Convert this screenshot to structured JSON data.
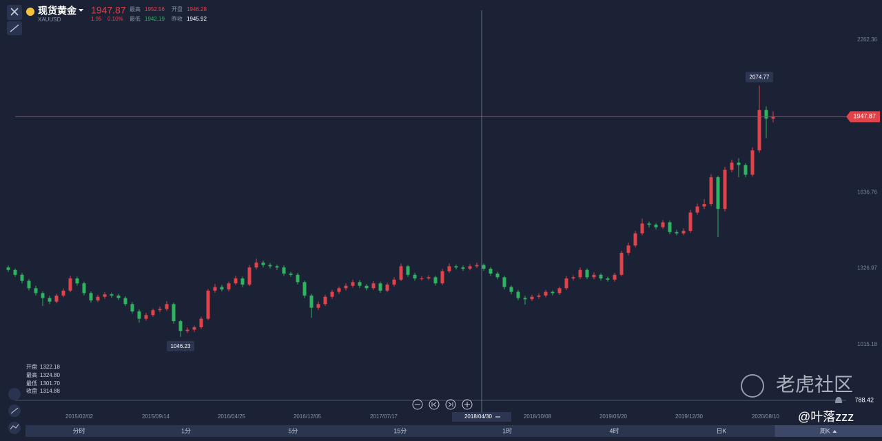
{
  "header": {
    "name": "现货黄金",
    "symbol": "XAUUSD",
    "price": "1947.87",
    "change": "1.95",
    "change_pct": "0.10%",
    "high_label": "最高",
    "high": "1952.56",
    "open_label": "开盘",
    "open": "1946.28",
    "low_label": "最低",
    "low": "1942.19",
    "prev_label": "昨收",
    "prev_close": "1945.92"
  },
  "chart_data": {
    "type": "candlestick",
    "up_color": "#e0434a",
    "down_color": "#2eb35e",
    "xlim": [
      -0.5,
      111.5
    ],
    "xticks": [
      {
        "value": 10.3,
        "label": "2015/02/02"
      },
      {
        "value": 21.4,
        "label": "2015/09/14"
      },
      {
        "value": 32.4,
        "label": "2016/04/25"
      },
      {
        "value": 43.4,
        "label": "2016/12/05"
      },
      {
        "value": 54.5,
        "label": "2017/07/17"
      },
      {
        "value": 76.8,
        "label": "2018/10/08"
      },
      {
        "value": 87.8,
        "label": "2019/05/20"
      },
      {
        "value": 98.8,
        "label": "2019/12/30"
      },
      {
        "value": 109.9,
        "label": "2020/08/10"
      }
    ],
    "ylim": [
      788.42,
      2426
    ],
    "yticks": [
      1015.18,
      1326.97,
      1636.76,
      2262.36
    ],
    "open": [
      1330,
      1320,
      1300,
      1275,
      1245,
      1225,
      1205,
      1190,
      1215,
      1235,
      1285,
      1265,
      1225,
      1195,
      1210,
      1220,
      1215,
      1205,
      1180,
      1150,
      1120,
      1135,
      1155,
      1160,
      1180,
      1110,
      1070,
      1075,
      1085,
      1120,
      1235,
      1250,
      1240,
      1265,
      1285,
      1260,
      1330,
      1350,
      1340,
      1335,
      1330,
      1305,
      1300,
      1270,
      1215,
      1165,
      1180,
      1210,
      1230,
      1245,
      1255,
      1270,
      1255,
      1245,
      1265,
      1235,
      1260,
      1280,
      1335,
      1300,
      1285,
      1285,
      1290,
      1265,
      1315,
      1335,
      1330,
      1325,
      1335,
      1340,
      1325,
      1305,
      1290,
      1250,
      1230,
      1205,
      1200,
      1210,
      1215,
      1230,
      1225,
      1245,
      1285,
      1290,
      1320,
      1290,
      1300,
      1285,
      1280,
      1300,
      1390,
      1420,
      1470,
      1510,
      1505,
      1495,
      1515,
      1475,
      1470,
      1480,
      1555,
      1580,
      1590,
      1700,
      1570,
      1730,
      1760,
      1750,
      1710,
      1810,
      1975,
      1940
    ],
    "high": [
      1338,
      1326,
      1308,
      1282,
      1255,
      1232,
      1214,
      1222,
      1244,
      1296,
      1292,
      1272,
      1232,
      1218,
      1228,
      1227,
      1222,
      1212,
      1188,
      1158,
      1144,
      1162,
      1170,
      1192,
      1186,
      1116,
      1084,
      1092,
      1128,
      1242,
      1262,
      1258,
      1272,
      1296,
      1292,
      1340,
      1366,
      1358,
      1348,
      1342,
      1338,
      1312,
      1308,
      1276,
      1222,
      1190,
      1218,
      1238,
      1252,
      1265,
      1280,
      1278,
      1262,
      1274,
      1272,
      1268,
      1290,
      1346,
      1340,
      1308,
      1294,
      1298,
      1296,
      1324,
      1346,
      1342,
      1338,
      1344,
      1350,
      1346,
      1332,
      1312,
      1296,
      1256,
      1238,
      1214,
      1218,
      1224,
      1238,
      1236,
      1252,
      1294,
      1298,
      1330,
      1326,
      1310,
      1306,
      1292,
      1308,
      1398,
      1432,
      1480,
      1530,
      1518,
      1512,
      1524,
      1522,
      1484,
      1490,
      1566,
      1592,
      1610,
      1712,
      1706,
      1742,
      1772,
      1778,
      1758,
      1822,
      2074.77,
      1990,
      1970
    ],
    "low": [
      1312,
      1292,
      1265,
      1236,
      1215,
      1172,
      1180,
      1183,
      1208,
      1228,
      1256,
      1216,
      1186,
      1188,
      1202,
      1206,
      1196,
      1172,
      1142,
      1104,
      1112,
      1128,
      1146,
      1152,
      1100,
      1046.23,
      1062,
      1066,
      1078,
      1114,
      1226,
      1232,
      1232,
      1258,
      1250,
      1254,
      1322,
      1330,
      1326,
      1320,
      1296,
      1292,
      1260,
      1205,
      1124,
      1156,
      1172,
      1202,
      1222,
      1236,
      1248,
      1246,
      1236,
      1238,
      1226,
      1228,
      1252,
      1274,
      1292,
      1276,
      1276,
      1278,
      1256,
      1258,
      1308,
      1322,
      1316,
      1318,
      1328,
      1316,
      1296,
      1282,
      1240,
      1220,
      1196,
      1178,
      1192,
      1202,
      1208,
      1216,
      1218,
      1238,
      1276,
      1282,
      1282,
      1282,
      1276,
      1272,
      1272,
      1294,
      1380,
      1412,
      1462,
      1494,
      1486,
      1488,
      1466,
      1462,
      1462,
      1472,
      1546,
      1570,
      1582,
      1455,
      1560,
      1720,
      1700,
      1700,
      1702,
      1800,
      1860,
      1925
    ],
    "close": [
      1320,
      1300,
      1275,
      1245,
      1225,
      1205,
      1190,
      1215,
      1235,
      1285,
      1265,
      1225,
      1195,
      1210,
      1220,
      1215,
      1205,
      1180,
      1150,
      1120,
      1135,
      1155,
      1160,
      1180,
      1110,
      1070,
      1075,
      1085,
      1120,
      1235,
      1250,
      1240,
      1265,
      1285,
      1260,
      1330,
      1350,
      1340,
      1335,
      1330,
      1305,
      1300,
      1270,
      1215,
      1165,
      1180,
      1210,
      1230,
      1245,
      1255,
      1270,
      1255,
      1245,
      1265,
      1235,
      1260,
      1280,
      1335,
      1300,
      1285,
      1285,
      1290,
      1265,
      1315,
      1335,
      1330,
      1325,
      1335,
      1340,
      1325,
      1305,
      1290,
      1250,
      1230,
      1205,
      1200,
      1210,
      1215,
      1230,
      1225,
      1245,
      1285,
      1290,
      1320,
      1290,
      1300,
      1285,
      1280,
      1300,
      1390,
      1420,
      1470,
      1510,
      1505,
      1495,
      1515,
      1475,
      1470,
      1480,
      1555,
      1580,
      1590,
      1700,
      1570,
      1730,
      1760,
      1750,
      1710,
      1810,
      1975,
      1940,
      1947.87
    ],
    "crosshair": {
      "x": 68.7,
      "label": "2018/04/30",
      "open_label": "开盘",
      "open": "1322.18",
      "high_label": "最高",
      "high": "1324.80",
      "low_label": "最低",
      "low": "1301.70",
      "close_label": "收盘",
      "close": "1314.88"
    }
  },
  "toolbar": {
    "tabs": [
      "分时",
      "1分",
      "5分",
      "15分",
      "1时",
      "4时",
      "日K",
      "周K"
    ]
  },
  "watermark": {
    "brand": "老虎社区",
    "author": "@叶落zzz"
  }
}
